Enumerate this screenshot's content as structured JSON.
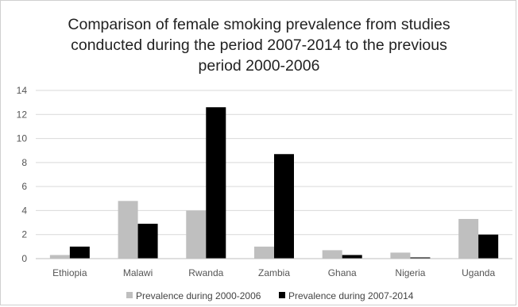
{
  "chart_data": {
    "type": "bar",
    "title_lines": [
      "Comparison of female smoking prevalence from studies",
      "conducted during the period 2007-2014 to the previous",
      "period 2000-2006"
    ],
    "categories": [
      "Ethiopia",
      "Malawi",
      "Rwanda",
      "Zambia",
      "Ghana",
      "Nigeria",
      "Uganda"
    ],
    "series": [
      {
        "name": "Prevalence during 2000-2006",
        "color": "#bfbfbf",
        "values": [
          0.3,
          4.8,
          4.0,
          1.0,
          0.7,
          0.5,
          3.3
        ]
      },
      {
        "name": "Prevalence during 2007-2014",
        "color": "#000000",
        "values": [
          1.0,
          2.9,
          12.6,
          8.7,
          0.3,
          0.1,
          2.0
        ]
      }
    ],
    "ylim": [
      0,
      14
    ],
    "yticks": [
      0,
      2,
      4,
      6,
      8,
      10,
      12,
      14
    ],
    "grid": true,
    "legend_position": "bottom",
    "xlabel": "",
    "ylabel": ""
  }
}
